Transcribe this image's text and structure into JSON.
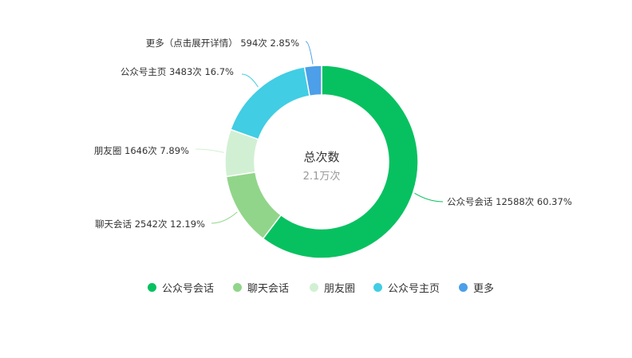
{
  "chart_data": {
    "type": "pie",
    "center": {
      "title": "总次数",
      "value": "2.1万次"
    },
    "series": [
      {
        "name": "公众号会话",
        "label": "公众号会话 12588次 60.37%",
        "value": 12588,
        "percent": 60.37,
        "color": "#07c160"
      },
      {
        "name": "聊天会话",
        "label": "聊天会话 2542次 12.19%",
        "value": 2542,
        "percent": 12.19,
        "color": "#91d58a"
      },
      {
        "name": "朋友圈",
        "label": "朋友圈 1646次 7.89%",
        "value": 1646,
        "percent": 7.89,
        "color": "#d1f0d3"
      },
      {
        "name": "公众号主页",
        "label": "公众号主页 3483次 16.7%",
        "value": 3483,
        "percent": 16.7,
        "color": "#41cde3"
      },
      {
        "name": "更多",
        "label": "更多（点击展开详情） 594次 2.85%",
        "value": 594,
        "percent": 2.85,
        "color": "#4c9fe8"
      }
    ],
    "legend_position": "bottom"
  }
}
